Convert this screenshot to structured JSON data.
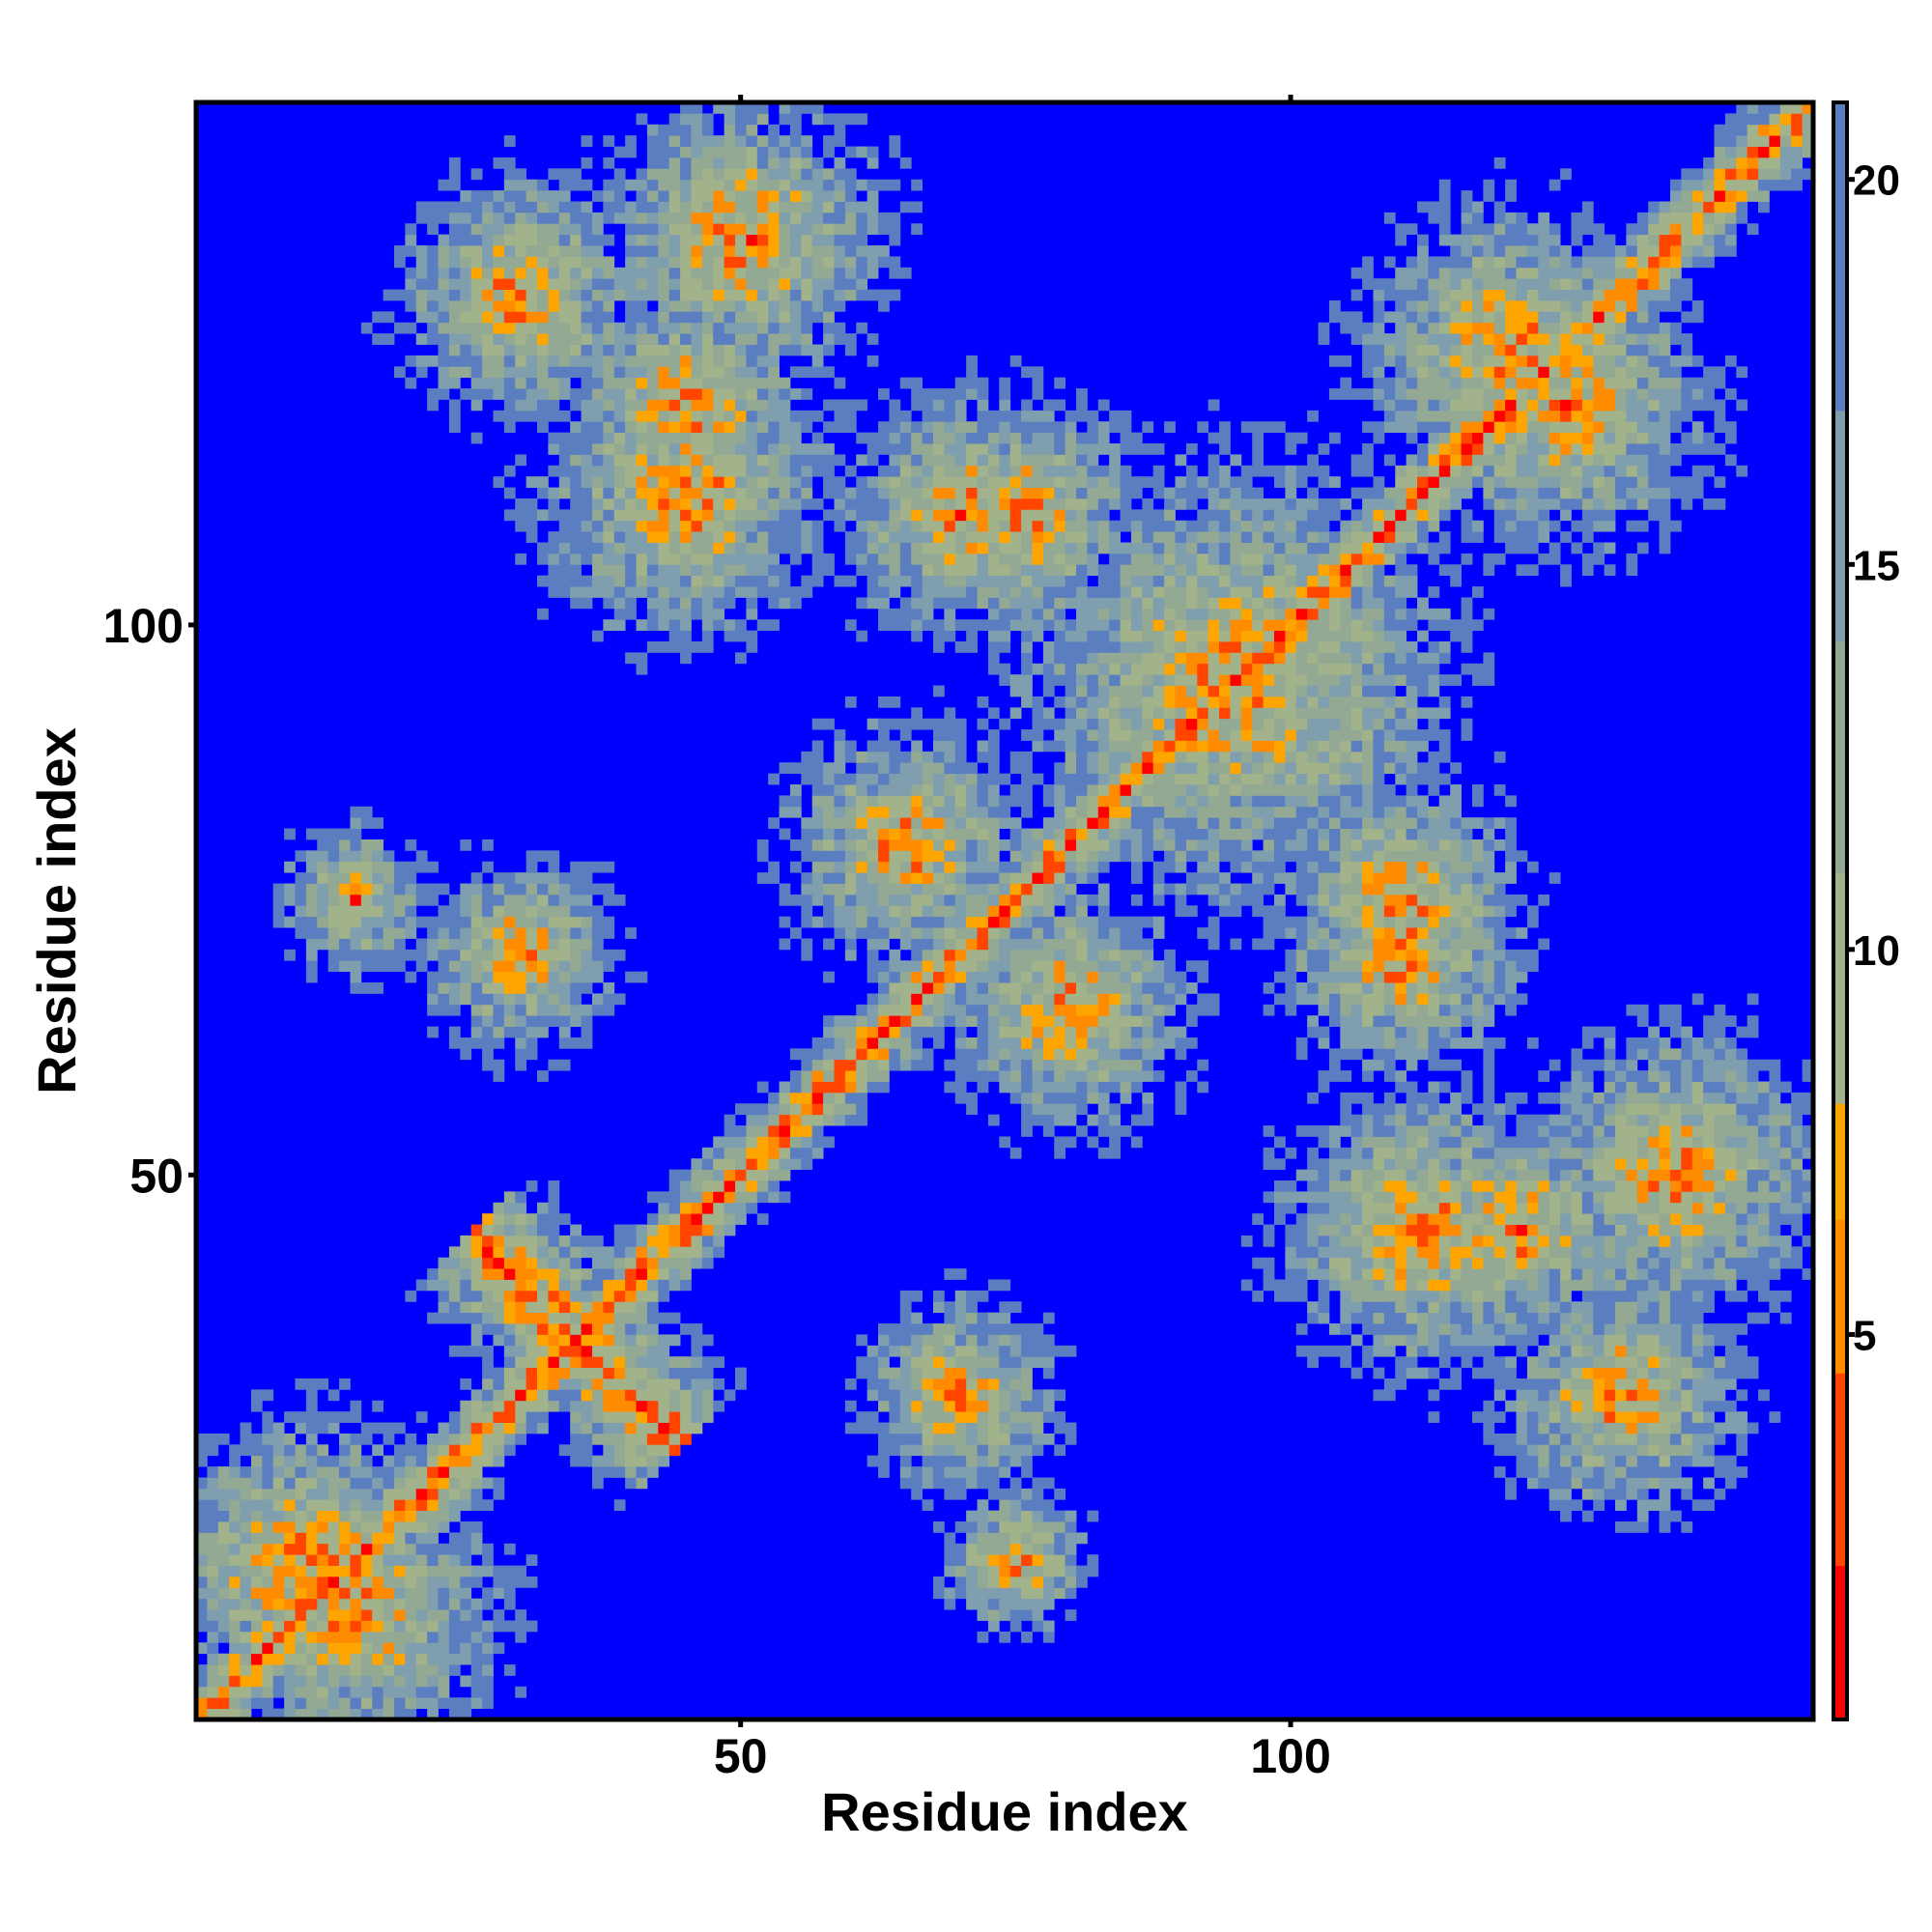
{
  "chart_data": {
    "type": "heatmap",
    "title": "",
    "xlabel": "Residue index",
    "ylabel": "Residue index",
    "n_residues": 147,
    "xlim": [
      1,
      147
    ],
    "ylim": [
      1,
      147
    ],
    "x_ticks": [
      50,
      100
    ],
    "y_ticks": [
      50,
      100
    ],
    "x_tick_labels": [
      "50",
      "100"
    ],
    "y_tick_labels": [
      "50",
      "100"
    ],
    "value_range": [
      0,
      21
    ],
    "colorbar": {
      "ticks": [
        5,
        10,
        15,
        20
      ],
      "tick_labels": [
        "5",
        "10",
        "15",
        "20"
      ],
      "position": "right",
      "colors": [
        {
          "max": 2,
          "color": "#ff0000"
        },
        {
          "max": 4.5,
          "color": "#ff4500"
        },
        {
          "max": 6.5,
          "color": "#ff8c00"
        },
        {
          "max": 8,
          "color": "#ffa500"
        },
        {
          "max": 11,
          "color": "#a2b28a"
        },
        {
          "max": 14,
          "color": "#93a993"
        },
        {
          "max": 17,
          "color": "#7f9eae"
        },
        {
          "max": 21,
          "color": "#5a7ec0"
        },
        {
          "max": 999,
          "color": "#0000ff"
        }
      ]
    },
    "background_color": "#0000ff",
    "diagonal_contacts": [
      {
        "x_range": [
          1,
          147
        ],
        "note": "main diagonal i=j"
      }
    ],
    "secondary_structure_contact_clusters": [
      {
        "center": [
          35,
          35
        ],
        "orientation": "antidiagonal",
        "extent": 14
      },
      {
        "center": [
          70,
          30
        ],
        "extent": 8
      },
      {
        "center": [
          75,
          110
        ],
        "extent": 10
      },
      {
        "center": [
          110,
          70
        ],
        "extent": 10
      },
      {
        "center": [
          125,
          120
        ],
        "extent": 12
      },
      {
        "center": [
          45,
          120
        ],
        "extent": 10
      },
      {
        "center": [
          30,
          130
        ],
        "extent": 10
      },
      {
        "center": [
          112,
          45
        ],
        "extent": 12
      },
      {
        "center": [
          135,
          50
        ],
        "extent": 12
      },
      {
        "center": [
          10,
          15
        ],
        "extent": 12
      },
      {
        "center": [
          15,
          75
        ],
        "extent": 6
      },
      {
        "center": [
          80,
          65
        ],
        "extent": 10
      },
      {
        "center": [
          65,
          80
        ],
        "extent": 10
      },
      {
        "center": [
          95,
          95
        ],
        "extent": 18
      }
    ]
  }
}
